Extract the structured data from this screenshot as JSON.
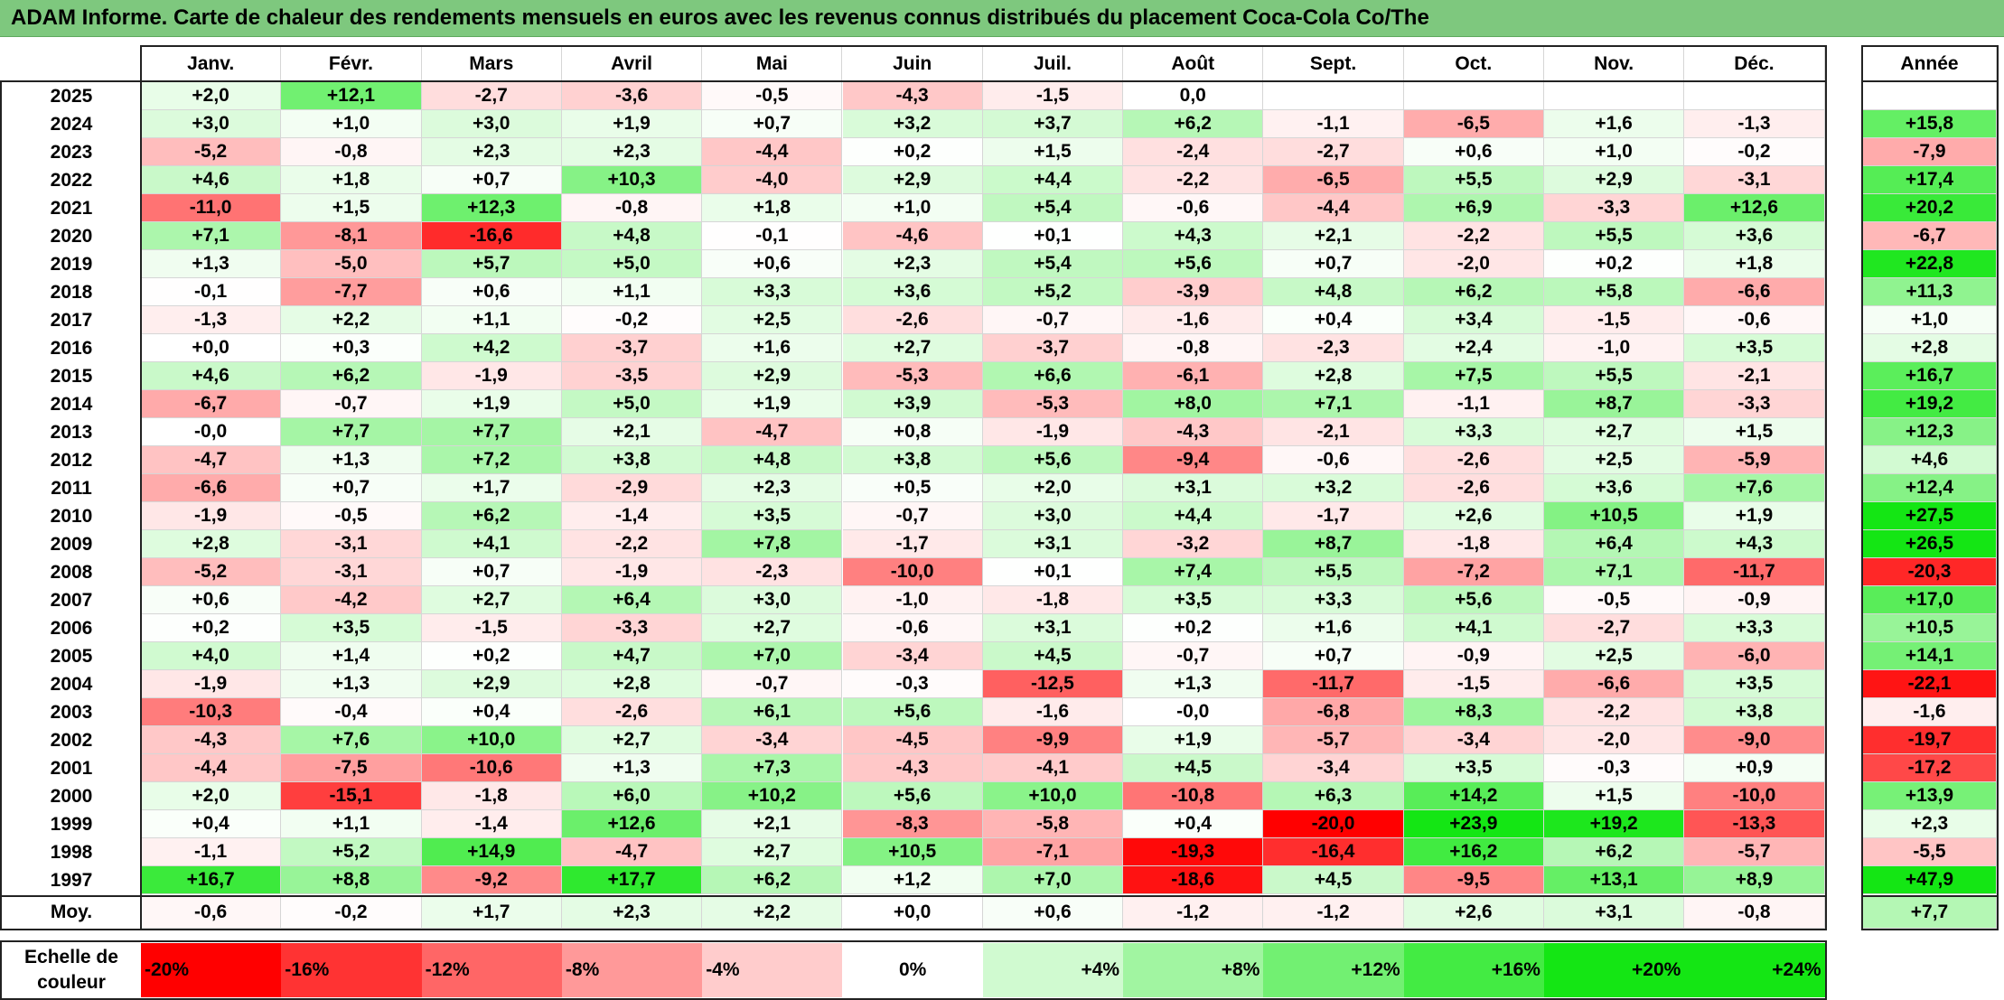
{
  "title": "ADAM Informe. Carte de chaleur des rendements mensuels en euros avec les revenus connus distribués du placement Coca-Cola Co/The",
  "colors": {
    "title_bg": "#7ec87e",
    "negative": "#ff0000",
    "positive": "#00ee00",
    "neutral": "#ffffff"
  },
  "chart_data": {
    "type": "heatmap",
    "title": "ADAM Informe. Carte de chaleur des rendements mensuels en euros avec les revenus connus distribués du placement Coca-Cola Co/The",
    "columns": [
      "Janv.",
      "Févr.",
      "Mars",
      "Avril",
      "Mai",
      "Juin",
      "Juil.",
      "Août",
      "Sept.",
      "Oct.",
      "Nov.",
      "Déc."
    ],
    "year_column": "Année",
    "rows": [
      {
        "year": "2025",
        "values": [
          "+2,0",
          "+12,1",
          "-2,7",
          "-3,6",
          "-0,5",
          "-4,3",
          "-1,5",
          "0,0",
          "",
          "",
          "",
          ""
        ],
        "annual": ""
      },
      {
        "year": "2024",
        "values": [
          "+3,0",
          "+1,0",
          "+3,0",
          "+1,9",
          "+0,7",
          "+3,2",
          "+3,7",
          "+6,2",
          "-1,1",
          "-6,5",
          "+1,6",
          "-1,3"
        ],
        "annual": "+15,8"
      },
      {
        "year": "2023",
        "values": [
          "-5,2",
          "-0,8",
          "+2,3",
          "+2,3",
          "-4,4",
          "+0,2",
          "+1,5",
          "-2,4",
          "-2,7",
          "+0,6",
          "+1,0",
          "-0,2"
        ],
        "annual": "-7,9"
      },
      {
        "year": "2022",
        "values": [
          "+4,6",
          "+1,8",
          "+0,7",
          "+10,3",
          "-4,0",
          "+2,9",
          "+4,4",
          "-2,2",
          "-6,5",
          "+5,5",
          "+2,9",
          "-3,1"
        ],
        "annual": "+17,4"
      },
      {
        "year": "2021",
        "values": [
          "-11,0",
          "+1,5",
          "+12,3",
          "-0,8",
          "+1,8",
          "+1,0",
          "+5,4",
          "-0,6",
          "-4,4",
          "+6,9",
          "-3,3",
          "+12,6"
        ],
        "annual": "+20,2"
      },
      {
        "year": "2020",
        "values": [
          "+7,1",
          "-8,1",
          "-16,6",
          "+4,8",
          "-0,1",
          "-4,6",
          "+0,1",
          "+4,3",
          "+2,1",
          "-2,2",
          "+5,5",
          "+3,6"
        ],
        "annual": "-6,7"
      },
      {
        "year": "2019",
        "values": [
          "+1,3",
          "-5,0",
          "+5,7",
          "+5,0",
          "+0,6",
          "+2,3",
          "+5,4",
          "+5,6",
          "+0,7",
          "-2,0",
          "+0,2",
          "+1,8"
        ],
        "annual": "+22,8"
      },
      {
        "year": "2018",
        "values": [
          "-0,1",
          "-7,7",
          "+0,6",
          "+1,1",
          "+3,3",
          "+3,6",
          "+5,2",
          "-3,9",
          "+4,8",
          "+6,2",
          "+5,8",
          "-6,6"
        ],
        "annual": "+11,3"
      },
      {
        "year": "2017",
        "values": [
          "-1,3",
          "+2,2",
          "+1,1",
          "-0,2",
          "+2,5",
          "-2,6",
          "-0,7",
          "-1,6",
          "+0,4",
          "+3,4",
          "-1,5",
          "-0,6"
        ],
        "annual": "+1,0"
      },
      {
        "year": "2016",
        "values": [
          "+0,0",
          "+0,3",
          "+4,2",
          "-3,7",
          "+1,6",
          "+2,7",
          "-3,7",
          "-0,8",
          "-2,3",
          "+2,4",
          "-1,0",
          "+3,5"
        ],
        "annual": "+2,8"
      },
      {
        "year": "2015",
        "values": [
          "+4,6",
          "+6,2",
          "-1,9",
          "-3,5",
          "+2,9",
          "-5,3",
          "+6,6",
          "-6,1",
          "+2,8",
          "+7,5",
          "+5,5",
          "-2,1"
        ],
        "annual": "+16,7"
      },
      {
        "year": "2014",
        "values": [
          "-6,7",
          "-0,7",
          "+1,9",
          "+5,0",
          "+1,9",
          "+3,9",
          "-5,3",
          "+8,0",
          "+7,1",
          "-1,1",
          "+8,7",
          "-3,3"
        ],
        "annual": "+19,2"
      },
      {
        "year": "2013",
        "values": [
          "-0,0",
          "+7,7",
          "+7,7",
          "+2,1",
          "-4,7",
          "+0,8",
          "-1,9",
          "-4,3",
          "-2,1",
          "+3,3",
          "+2,7",
          "+1,5"
        ],
        "annual": "+12,3"
      },
      {
        "year": "2012",
        "values": [
          "-4,7",
          "+1,3",
          "+7,2",
          "+3,8",
          "+4,8",
          "+3,8",
          "+5,6",
          "-9,4",
          "-0,6",
          "-2,6",
          "+2,5",
          "-5,9"
        ],
        "annual": "+4,6"
      },
      {
        "year": "2011",
        "values": [
          "-6,6",
          "+0,7",
          "+1,7",
          "-2,9",
          "+2,3",
          "+0,5",
          "+2,0",
          "+3,1",
          "+3,2",
          "-2,6",
          "+3,6",
          "+7,6"
        ],
        "annual": "+12,4"
      },
      {
        "year": "2010",
        "values": [
          "-1,9",
          "-0,5",
          "+6,2",
          "-1,4",
          "+3,5",
          "-0,7",
          "+3,0",
          "+4,4",
          "-1,7",
          "+2,6",
          "+10,5",
          "+1,9"
        ],
        "annual": "+27,5"
      },
      {
        "year": "2009",
        "values": [
          "+2,8",
          "-3,1",
          "+4,1",
          "-2,2",
          "+7,8",
          "-1,7",
          "+3,1",
          "-3,2",
          "+8,7",
          "-1,8",
          "+6,4",
          "+4,3"
        ],
        "annual": "+26,5"
      },
      {
        "year": "2008",
        "values": [
          "-5,2",
          "-3,1",
          "+0,7",
          "-1,9",
          "-2,3",
          "-10,0",
          "+0,1",
          "+7,4",
          "+5,5",
          "-7,2",
          "+7,1",
          "-11,7"
        ],
        "annual": "-20,3"
      },
      {
        "year": "2007",
        "values": [
          "+0,6",
          "-4,2",
          "+2,7",
          "+6,4",
          "+3,0",
          "-1,0",
          "-1,8",
          "+3,5",
          "+3,3",
          "+5,6",
          "-0,5",
          "-0,9"
        ],
        "annual": "+17,0"
      },
      {
        "year": "2006",
        "values": [
          "+0,2",
          "+3,5",
          "-1,5",
          "-3,3",
          "+2,7",
          "-0,6",
          "+3,1",
          "+0,2",
          "+1,6",
          "+4,1",
          "-2,7",
          "+3,3"
        ],
        "annual": "+10,5"
      },
      {
        "year": "2005",
        "values": [
          "+4,0",
          "+1,4",
          "+0,2",
          "+4,7",
          "+7,0",
          "-3,4",
          "+4,5",
          "-0,7",
          "+0,7",
          "-0,9",
          "+2,5",
          "-6,0"
        ],
        "annual": "+14,1"
      },
      {
        "year": "2004",
        "values": [
          "-1,9",
          "+1,3",
          "+2,9",
          "+2,8",
          "-0,7",
          "-0,3",
          "-12,5",
          "+1,3",
          "-11,7",
          "-1,5",
          "-6,6",
          "+3,5"
        ],
        "annual": "-22,1"
      },
      {
        "year": "2003",
        "values": [
          "-10,3",
          "-0,4",
          "+0,4",
          "-2,6",
          "+6,1",
          "+5,6",
          "-1,6",
          "-0,0",
          "-6,8",
          "+8,3",
          "-2,2",
          "+3,8"
        ],
        "annual": "-1,6"
      },
      {
        "year": "2002",
        "values": [
          "-4,3",
          "+7,6",
          "+10,0",
          "+2,7",
          "-3,4",
          "-4,5",
          "-9,9",
          "+1,9",
          "-5,7",
          "-3,4",
          "-2,0",
          "-9,0"
        ],
        "annual": "-19,7"
      },
      {
        "year": "2001",
        "values": [
          "-4,4",
          "-7,5",
          "-10,6",
          "+1,3",
          "+7,3",
          "-4,3",
          "-4,1",
          "+4,5",
          "-3,4",
          "+3,5",
          "-0,3",
          "+0,9"
        ],
        "annual": "-17,2"
      },
      {
        "year": "2000",
        "values": [
          "+2,0",
          "-15,1",
          "-1,8",
          "+6,0",
          "+10,2",
          "+5,6",
          "+10,0",
          "-10,8",
          "+6,3",
          "+14,2",
          "+1,5",
          "-10,0"
        ],
        "annual": "+13,9"
      },
      {
        "year": "1999",
        "values": [
          "+0,4",
          "+1,1",
          "-1,4",
          "+12,6",
          "+2,1",
          "-8,3",
          "-5,8",
          "+0,4",
          "-20,0",
          "+23,9",
          "+19,2",
          "-13,3"
        ],
        "annual": "+2,3"
      },
      {
        "year": "1998",
        "values": [
          "-1,1",
          "+5,2",
          "+14,9",
          "-4,7",
          "+2,7",
          "+10,5",
          "-7,1",
          "-19,3",
          "-16,4",
          "+16,2",
          "+6,2",
          "-5,7"
        ],
        "annual": "-5,5"
      },
      {
        "year": "1997",
        "values": [
          "+16,7",
          "+8,8",
          "-9,2",
          "+17,7",
          "+6,2",
          "+1,2",
          "+7,0",
          "-18,6",
          "+4,5",
          "-9,5",
          "+13,1",
          "+8,9"
        ],
        "annual": "+47,9"
      }
    ],
    "average": {
      "label": "Moy.",
      "values": [
        "-0,6",
        "-0,2",
        "+1,7",
        "+2,3",
        "+2,2",
        "+0,0",
        "+0,6",
        "-1,2",
        "-1,2",
        "+2,6",
        "+3,1",
        "-0,8"
      ],
      "annual": "+7,7"
    },
    "scale": {
      "label_line1": "Echelle de",
      "label_line2": "couleur",
      "ticks": [
        {
          "label": "-20%",
          "value": -20
        },
        {
          "label": "-16%",
          "value": -16
        },
        {
          "label": "-12%",
          "value": -12
        },
        {
          "label": "-8%",
          "value": -8
        },
        {
          "label": "-4%",
          "value": -4
        },
        {
          "label": "0%",
          "value": 0
        },
        {
          "label": "+4%",
          "value": 4
        },
        {
          "label": "+8%",
          "value": 8
        },
        {
          "label": "+12%",
          "value": 12
        },
        {
          "label": "+16%",
          "value": 16
        },
        {
          "label": "+20%",
          "value": 20
        },
        {
          "label": "+24%",
          "value": 24
        }
      ]
    }
  }
}
